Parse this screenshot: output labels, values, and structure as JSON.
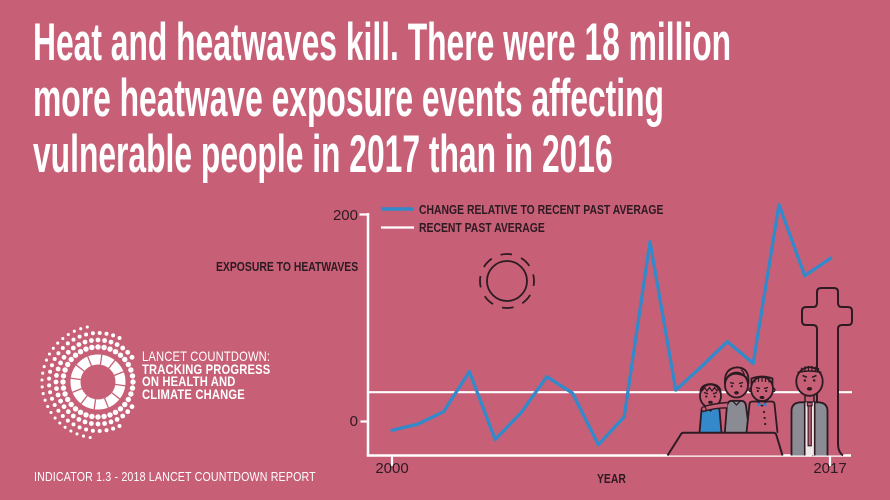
{
  "colors": {
    "background": "#c76077",
    "line_blue": "#3389c9",
    "ink": "#2d1a22",
    "white": "#ffffff",
    "clothes_gray": "#8b8b94"
  },
  "title": {
    "lines": [
      "Heat and heatwaves kill. There were 18 million",
      "more heatwave exposure events affecting",
      "vulnerable people in 2017 than in 2016"
    ]
  },
  "logo": {
    "lines": [
      "LANCET COUNTDOWN:",
      "TRACKING PROGRESS",
      "ON HEALTH AND",
      "CLIMATE CHANGE"
    ]
  },
  "footer": {
    "text": "INDICATOR 1.3 - 2018 LANCET COUNTDOWN REPORT"
  },
  "icons": {
    "sun": "sun-icon",
    "gravestone": "cross-gravestone-icon",
    "mourners": "mourning-family-illustration",
    "man": "mourning-man-illustration"
  },
  "chart_data": {
    "type": "line",
    "xlabel": "YEAR",
    "ylabel": "EXPOSURE TO HEATWAVES",
    "x": [
      2000,
      2001,
      2002,
      2003,
      2004,
      2005,
      2006,
      2007,
      2008,
      2009,
      2010,
      2011,
      2012,
      2013,
      2014,
      2015,
      2016,
      2017
    ],
    "series": [
      {
        "name": "CHANGE RELATIVE TO RECENT PAST AVERAGE",
        "color": "#3389c9",
        "values": [
          -9,
          -3,
          9,
          48,
          -18,
          8,
          43,
          27,
          -23,
          4,
          174,
          30,
          53,
          77,
          56,
          210,
          141,
          158
        ]
      },
      {
        "name": "RECENT PAST AVERAGE",
        "color": "#ffffff",
        "constant_value": 28
      }
    ],
    "yticks": [
      {
        "value": 200,
        "label": "200"
      },
      {
        "value": 0,
        "label": "0"
      }
    ],
    "xticks": [
      {
        "value": 2000,
        "label": "2000"
      },
      {
        "value": 2017,
        "label": "2017"
      }
    ],
    "ylim": [
      -34,
      235
    ],
    "grid": false,
    "legend_position": "top-left"
  }
}
